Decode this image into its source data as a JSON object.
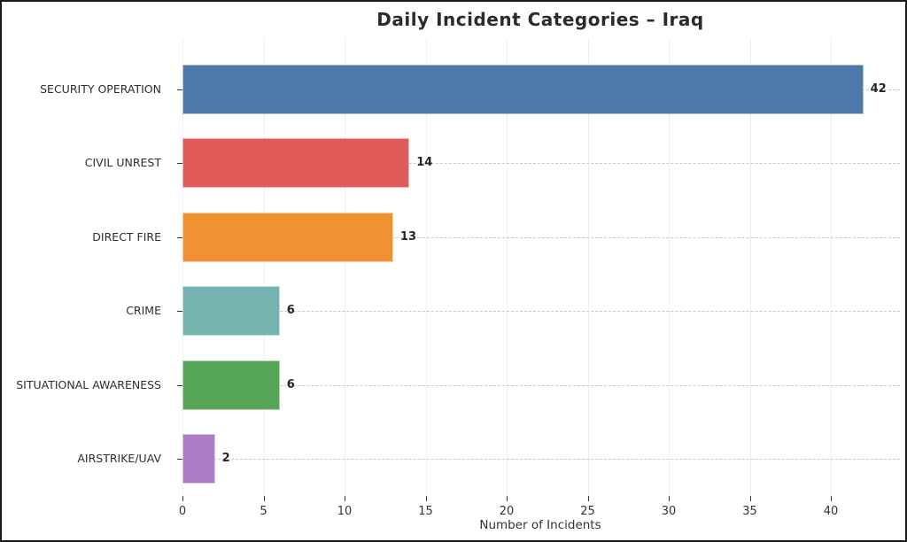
{
  "chart_data": {
    "type": "bar",
    "orientation": "horizontal",
    "title": "Daily Incident Categories – Iraq",
    "xlabel": "Number of Incidents",
    "ylabel": "",
    "categories": [
      "SECURITY OPERATION",
      "CIVIL UNREST",
      "DIRECT FIRE",
      "CRIME",
      "SITUATIONAL AWARENESS",
      "AIRSTRIKE/UAV"
    ],
    "values": [
      42,
      14,
      13,
      6,
      6,
      2
    ],
    "value_labels": [
      "42",
      "14",
      "13",
      "6",
      "6",
      "2"
    ],
    "bar_colors": [
      "#4c78aa",
      "#e05a5a",
      "#ef9231",
      "#75b4b0",
      "#56a556",
      "#ae7cc5"
    ],
    "xticks": [
      0,
      5,
      10,
      15,
      20,
      25,
      30,
      35,
      40
    ],
    "xtick_labels": [
      "0",
      "5",
      "10",
      "15",
      "20",
      "25",
      "30",
      "35",
      "40"
    ],
    "xlim": [
      0,
      44.15
    ],
    "grid": {
      "horizontal": "dashed",
      "vertical": "dotted"
    },
    "legend": "none",
    "frame_color": "#1a1a1a",
    "background_color": "#ffffff"
  }
}
